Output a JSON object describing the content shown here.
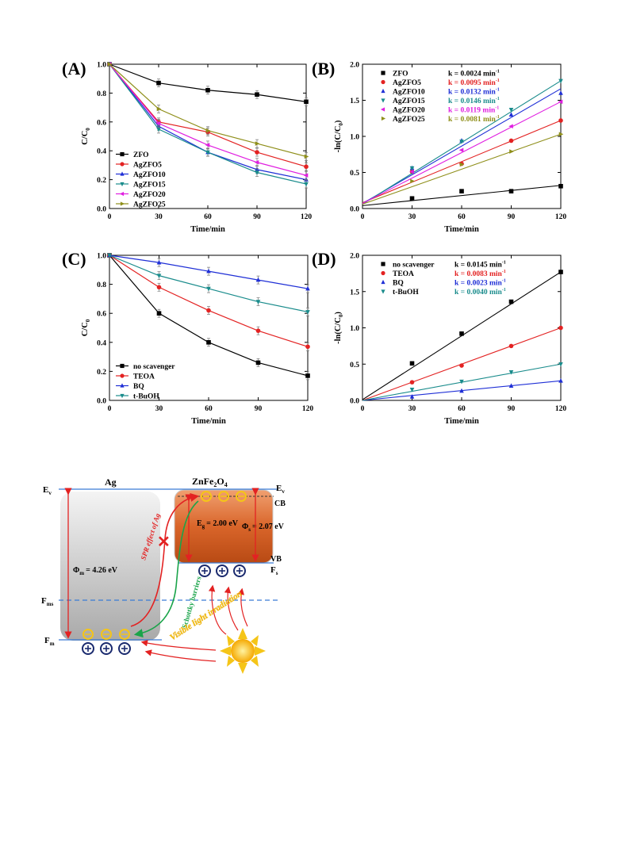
{
  "chart_data": [
    {
      "panel": "(A)",
      "type": "line",
      "xlabel": "Time/min",
      "ylabel_main": "C/C",
      "ylabel_sub": "0",
      "xlim": [
        0,
        120
      ],
      "ylim": [
        0,
        1.0
      ],
      "xticks": [
        "0",
        "30",
        "60",
        "90",
        "120"
      ],
      "yticks": [
        "0.0",
        "0.2",
        "0.4",
        "0.6",
        "0.8",
        "1.0"
      ],
      "x": [
        0,
        30,
        60,
        90,
        120
      ],
      "legend_position": "bottom-left",
      "series": [
        {
          "name": "ZFO",
          "color": "#000000",
          "marker": "square",
          "values": [
            1.0,
            0.87,
            0.82,
            0.79,
            0.74
          ]
        },
        {
          "name": "AgZFO5",
          "color": "#e32222",
          "marker": "circle",
          "values": [
            1.0,
            0.6,
            0.53,
            0.39,
            0.29
          ]
        },
        {
          "name": "AgZFO10",
          "color": "#1f2fd6",
          "marker": "tri-up",
          "values": [
            1.0,
            0.57,
            0.39,
            0.27,
            0.2
          ]
        },
        {
          "name": "AgZFO15",
          "color": "#1a8c8c",
          "marker": "tri-down",
          "values": [
            1.0,
            0.55,
            0.39,
            0.25,
            0.17
          ]
        },
        {
          "name": "AgZFO20",
          "color": "#e01ee0",
          "marker": "tri-left",
          "values": [
            1.0,
            0.59,
            0.44,
            0.32,
            0.23
          ]
        },
        {
          "name": "AgZFO25",
          "color": "#8f8f1a",
          "marker": "tri-right",
          "values": [
            1.0,
            0.69,
            0.54,
            0.45,
            0.36
          ]
        }
      ],
      "error_series": "ZFO"
    },
    {
      "panel": "(B)",
      "type": "scatter",
      "xlabel": "Time/min",
      "ylabel_main": "-ln(C/C",
      "ylabel_sub": "0",
      "ylabel_end": ")",
      "xlim": [
        0,
        120
      ],
      "ylim": [
        0,
        2.0
      ],
      "xticks": [
        "0",
        "30",
        "60",
        "90",
        "120"
      ],
      "yticks": [
        "0.0",
        "0.5",
        "1.0",
        "1.5",
        "2.0"
      ],
      "x": [
        0,
        30,
        60,
        90,
        120
      ],
      "legend_position": "top-left",
      "series": [
        {
          "name": "ZFO",
          "k": "k = 0.0024 min",
          "color": "#000000",
          "marker": "square",
          "values": [
            0.0,
            0.14,
            0.24,
            0.24,
            0.31
          ],
          "fit": [
            0.04,
            0.32
          ]
        },
        {
          "name": "AgZFO5",
          "k": "k = 0.0095 min",
          "color": "#e32222",
          "marker": "circle",
          "values": [
            0.0,
            0.51,
            0.62,
            0.94,
            1.22
          ],
          "fit": [
            0.08,
            1.22
          ]
        },
        {
          "name": "AgZFO10",
          "k": "k = 0.0132 min",
          "color": "#1f2fd6",
          "marker": "tri-up",
          "values": [
            0.0,
            0.56,
            0.94,
            1.3,
            1.6
          ],
          "fit": [
            0.07,
            1.66
          ]
        },
        {
          "name": "AgZFO15",
          "k": "k = 0.0146 min",
          "color": "#1a8c8c",
          "marker": "tri-down",
          "values": [
            0.0,
            0.56,
            0.93,
            1.37,
            1.77
          ],
          "fit": [
            0.06,
            1.77
          ]
        },
        {
          "name": "AgZFO20",
          "k": "k = 0.0119 min",
          "color": "#e01ee0",
          "marker": "tri-left",
          "values": [
            0.0,
            0.51,
            0.81,
            1.14,
            1.48
          ],
          "fit": [
            0.07,
            1.48
          ]
        },
        {
          "name": "AgZFO25",
          "k": "k = 0.0081 min",
          "color": "#8f8f1a",
          "marker": "tri-right",
          "values": [
            0.0,
            0.38,
            0.61,
            0.79,
            1.03
          ],
          "fit": [
            0.06,
            1.03
          ]
        }
      ],
      "k_superscript": "-1"
    },
    {
      "panel": "(C)",
      "type": "line",
      "xlabel": "Time/min",
      "ylabel_main": "C/C",
      "ylabel_sub": "0",
      "xlim": [
        0,
        120
      ],
      "ylim": [
        0,
        1.0
      ],
      "xticks": [
        "0",
        "30",
        "60",
        "90",
        "120"
      ],
      "yticks": [
        "0.0",
        "0.2",
        "0.4",
        "0.6",
        "0.8",
        "1.0"
      ],
      "x": [
        0,
        30,
        60,
        90,
        120
      ],
      "legend_position": "bottom-left",
      "series": [
        {
          "name": "no scavenger",
          "color": "#000000",
          "marker": "square",
          "values": [
            1.0,
            0.6,
            0.4,
            0.26,
            0.17
          ]
        },
        {
          "name": "TEOA",
          "color": "#e32222",
          "marker": "circle",
          "values": [
            1.0,
            0.78,
            0.62,
            0.48,
            0.37
          ]
        },
        {
          "name": "BQ",
          "color": "#1f2fd6",
          "marker": "tri-up",
          "values": [
            1.0,
            0.95,
            0.89,
            0.83,
            0.77
          ]
        },
        {
          "name": "t-BuOH",
          "color": "#1a8c8c",
          "marker": "tri-down",
          "values": [
            1.0,
            0.86,
            0.77,
            0.68,
            0.61
          ]
        }
      ],
      "error_series": "no scavenger"
    },
    {
      "panel": "(D)",
      "type": "scatter",
      "xlabel": "Time/min",
      "ylabel_main": "-ln(C/C",
      "ylabel_sub": "0",
      "ylabel_end": ")",
      "xlim": [
        0,
        120
      ],
      "ylim": [
        0,
        2.0
      ],
      "xticks": [
        "0",
        "30",
        "60",
        "90",
        "120"
      ],
      "yticks": [
        "0.0",
        "0.5",
        "1.0",
        "1.5",
        "2.0"
      ],
      "x": [
        0,
        30,
        60,
        90,
        120
      ],
      "legend_position": "top-left",
      "series": [
        {
          "name": "no scavenger",
          "k": "k = 0.0145 min",
          "color": "#000000",
          "marker": "square",
          "values": [
            0.0,
            0.51,
            0.92,
            1.36,
            1.77
          ],
          "fit": [
            0.01,
            1.77
          ]
        },
        {
          "name": "TEOA",
          "k": "k = 0.0083 min",
          "color": "#e32222",
          "marker": "circle",
          "values": [
            0.0,
            0.25,
            0.48,
            0.75,
            1.0
          ],
          "fit": [
            0.0,
            1.0
          ]
        },
        {
          "name": "BQ",
          "k": "k = 0.0023 min",
          "color": "#1f2fd6",
          "marker": "tri-up",
          "values": [
            0.0,
            0.05,
            0.13,
            0.2,
            0.27
          ],
          "fit": [
            0.0,
            0.27
          ]
        },
        {
          "name": "t-BuOH",
          "k": "k = 0.0040 min",
          "color": "#1a8c8c",
          "marker": "tri-down",
          "values": [
            0.0,
            0.15,
            0.26,
            0.39,
            0.5
          ],
          "fit": [
            0.0,
            0.5
          ]
        }
      ],
      "k_superscript": "-1"
    }
  ],
  "diagram": {
    "ag_label": "Ag",
    "zfo_label_main": "ZnFe",
    "zfo_sub1": "2",
    "zfo_mid": "O",
    "zfo_sub2": "4",
    "ev_left": "E",
    "ev_left_sub": "v",
    "ev_right": "E",
    "ev_right_sub": "v",
    "cb": "CB",
    "vb": "VB",
    "fs": "F",
    "fs_sub": "s",
    "fms": "F",
    "fms_sub": "ms",
    "fm": "F",
    "fm_sub": "m",
    "eg": "E",
    "eg_sub": "g",
    "eg_value": "= 2.00 eV",
    "phis": "Φ",
    "phis_sub": "s",
    "phis_value": "= 2.07 eV",
    "phim": "Φ",
    "phim_sub": "m",
    "phim_value": "= 4.26 eV",
    "spr": "SPR effect of Ag",
    "schottky": "Schottky barriers",
    "visible": "Visible light irradiation",
    "cross": "✕",
    "electron": "⊖",
    "hole": "⊕",
    "colors": {
      "ag_fill": "#c9c9c9",
      "zfo_fill": "#d9652a",
      "red": "#e32222",
      "green": "#1aa44a",
      "blue": "#3a7bd5",
      "yellow": "#f5c518",
      "navy": "#1a2a6e"
    }
  }
}
